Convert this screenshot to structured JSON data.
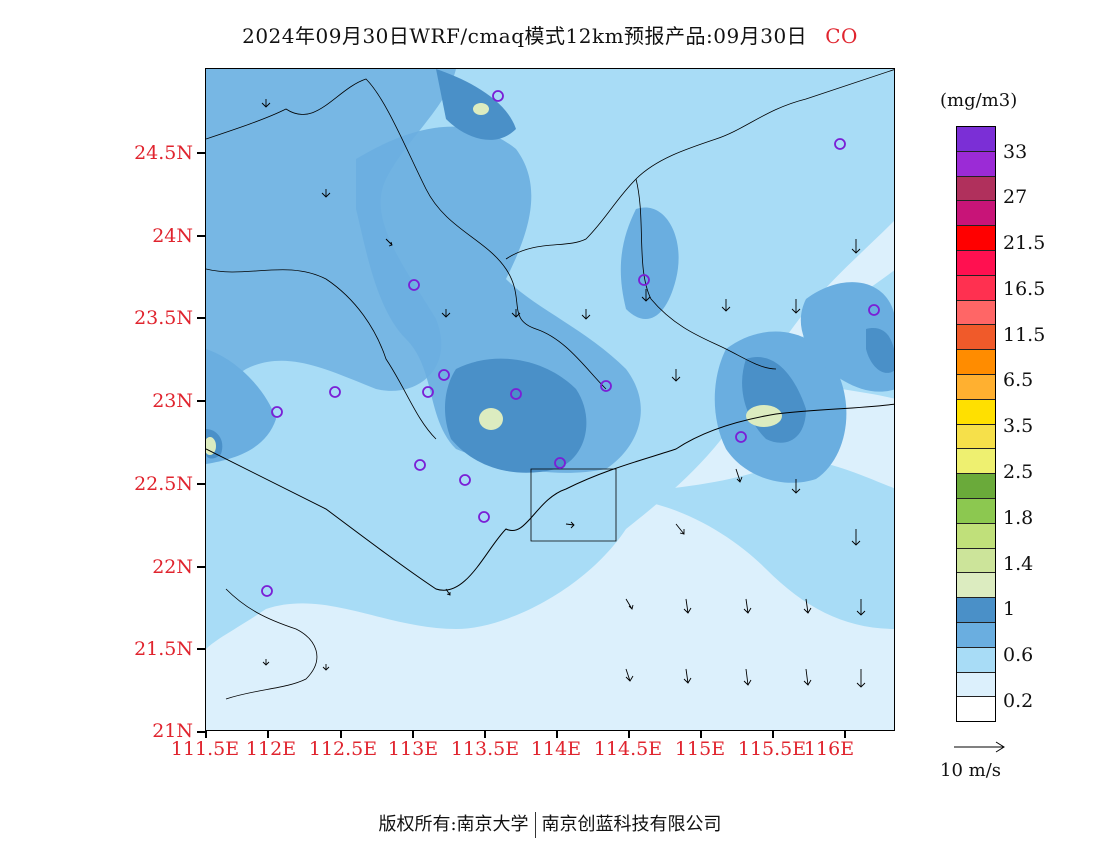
{
  "title": {
    "main": "2024年09月30日WRF/cmaq模式12km预报产品:09月30日",
    "species": "CO"
  },
  "axes": {
    "y_labels": [
      "21N",
      "21.5N",
      "22N",
      "22.5N",
      "23N",
      "23.5N",
      "24N",
      "24.5N"
    ],
    "x_labels": [
      "111.5E",
      "112E",
      "112.5E",
      "113E",
      "113.5E",
      "114E",
      "114.5E",
      "115E",
      "115.5E",
      "116E"
    ]
  },
  "colorbar": {
    "unit": "(mg/m3)",
    "labels": [
      "33",
      "27",
      "21.5",
      "16.5",
      "11.5",
      "6.5",
      "3.5",
      "2.5",
      "1.8",
      "1.4",
      "1",
      "0.6",
      "0.2"
    ],
    "colors": [
      "#7b2fd6",
      "#9b2bd6",
      "#b0305c",
      "#c81478",
      "#ff0000",
      "#ff1050",
      "#ff3050",
      "#ff6666",
      "#f05a2a",
      "#ff8c00",
      "#ffb030",
      "#ffe000",
      "#f6e04a",
      "#eef070",
      "#6aaa3a",
      "#8cc850",
      "#c0e07a",
      "#cce49a",
      "#dcecc0",
      "#4a90c8",
      "#6aaee0",
      "#a8dcf6",
      "#dcf0fc",
      "#ffffff"
    ]
  },
  "vector_ref": {
    "label": "10 m/s"
  },
  "footer": {
    "left": "版权所有:南京大学",
    "right": "南京创蓝科技有限公司"
  }
}
